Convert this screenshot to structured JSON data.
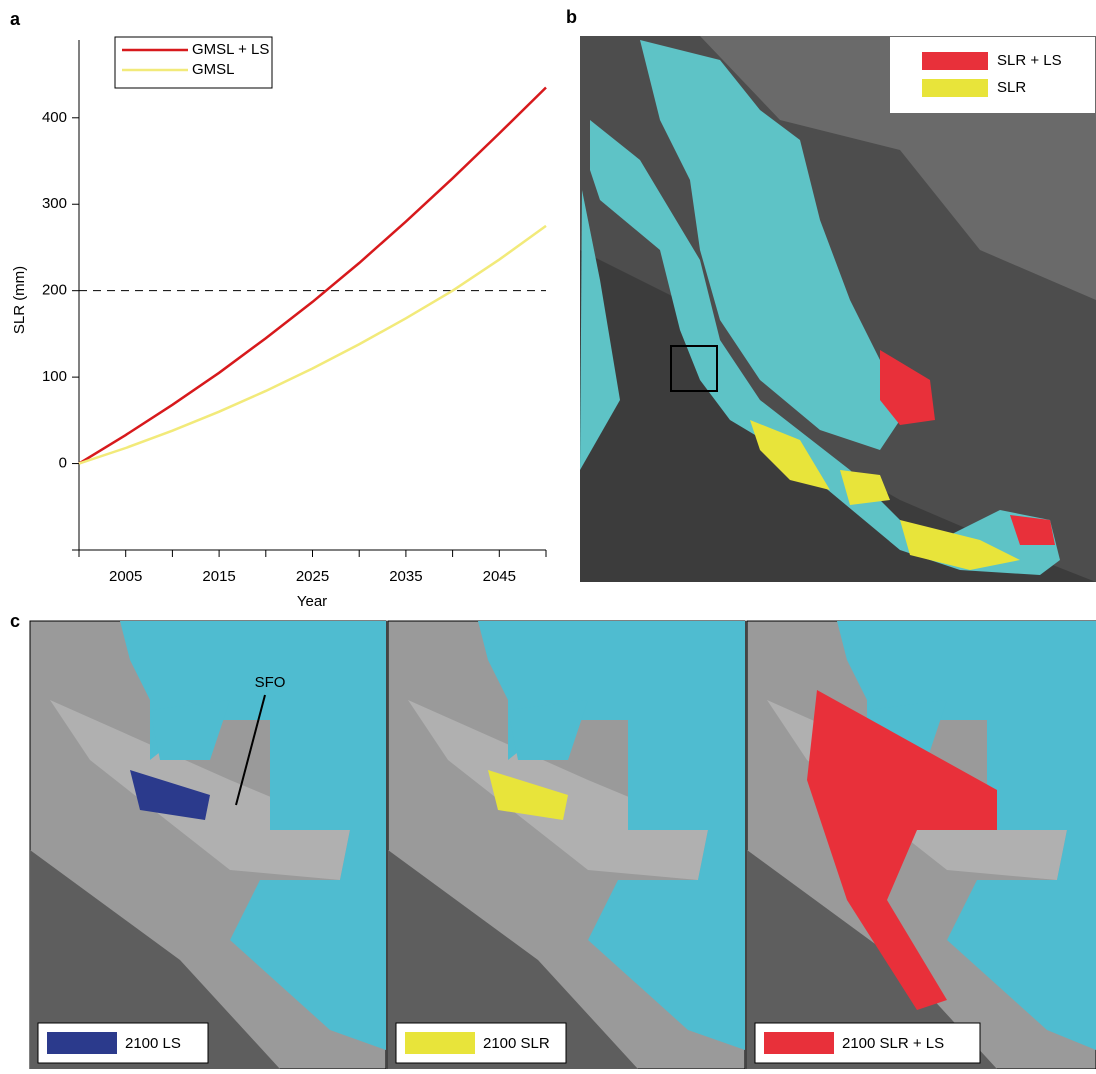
{
  "chart_data": {
    "type": "line",
    "y_label": "SLR (mm)",
    "x_label": "Year",
    "x": [
      2000,
      2005,
      2010,
      2015,
      2020,
      2025,
      2030,
      2035,
      2040,
      2045,
      2050
    ],
    "series": [
      {
        "name": "GMSL + LS",
        "color": "#d7191c",
        "values": [
          0,
          33,
          68,
          105,
          145,
          187,
          232,
          280,
          330,
          382,
          435
        ]
      },
      {
        "name": "GMSL",
        "color": "#f2ea7a",
        "values": [
          0,
          18,
          38,
          60,
          84,
          110,
          138,
          168,
          200,
          236,
          275
        ]
      }
    ],
    "xlim": [
      2000,
      2050
    ],
    "xticks": [
      2005,
      2015,
      2025,
      2035,
      2045
    ],
    "xminorticks": [
      2000,
      2010,
      2020,
      2030,
      2040,
      2050
    ],
    "ylim": [
      -100,
      490
    ],
    "yticks": [
      0,
      100,
      200,
      300,
      400
    ],
    "yminorticks": [
      -100
    ],
    "hline": 200,
    "legend": "upper-left"
  },
  "panel_labels": [
    "a",
    "b",
    "c"
  ],
  "map_b": {
    "legend": [
      {
        "name": "SLR + LS",
        "color": "#e8303a"
      },
      {
        "name": "SLR",
        "color": "#e8e43a"
      }
    ]
  },
  "map_c": {
    "annotation": "SFO",
    "legend": [
      {
        "name": "2100 LS",
        "color": "#2b3a8c"
      },
      {
        "name": "2100 SLR",
        "color": "#e8e43a"
      },
      {
        "name": "2100 SLR + LS",
        "color": "#e8303a"
      }
    ]
  }
}
